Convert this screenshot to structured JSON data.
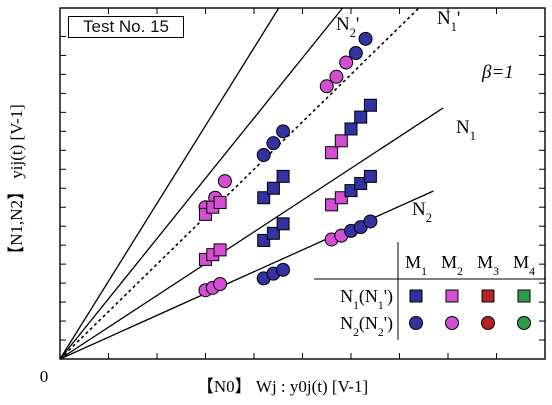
{
  "test_label": "Test No. 15",
  "chart_data": {
    "type": "scatter",
    "title": "",
    "xlabel": "【N0】 Wj : y0j(t) [V-1]",
    "ylabel": "【N1,N2】 yij(t) [V-1]",
    "origin_label": "0",
    "xlim": [
      0,
      10
    ],
    "ylim": [
      0,
      7.4
    ],
    "grid": false,
    "legend_position": "bottom-right",
    "reference_line": {
      "label": "β=1",
      "slope": 1,
      "style": "dotted"
    },
    "fit_lines": [
      {
        "name": "N2'",
        "slope": 1.64,
        "x_end": 6.5
      },
      {
        "name": "N1'",
        "slope": 1.27,
        "x_end": 7.8
      },
      {
        "name": "N1",
        "slope": 0.67,
        "x_end": 7.9
      },
      {
        "name": "N2",
        "slope": 0.46,
        "x_end": 7.7
      }
    ],
    "series": [
      {
        "name": "N2'",
        "marker": "circle",
        "points": [
          [
            3.0,
            3.2
          ],
          [
            3.2,
            3.4
          ],
          [
            3.4,
            3.75
          ],
          [
            4.2,
            4.3
          ],
          [
            4.4,
            4.55
          ],
          [
            4.6,
            4.8
          ],
          [
            5.5,
            5.75
          ],
          [
            5.7,
            5.95
          ],
          [
            5.9,
            6.25
          ],
          [
            6.1,
            6.45
          ],
          [
            6.3,
            6.75
          ]
        ]
      },
      {
        "name": "N1'",
        "marker": "square",
        "points": [
          [
            3.0,
            3.05
          ],
          [
            3.15,
            3.2
          ],
          [
            3.3,
            3.3
          ],
          [
            4.2,
            3.4
          ],
          [
            4.4,
            3.6
          ],
          [
            4.6,
            3.85
          ],
          [
            5.6,
            4.35
          ],
          [
            5.8,
            4.6
          ],
          [
            6.0,
            4.85
          ],
          [
            6.2,
            5.1
          ],
          [
            6.4,
            5.35
          ]
        ]
      },
      {
        "name": "N1",
        "marker": "square",
        "points": [
          [
            3.0,
            2.1
          ],
          [
            3.15,
            2.2
          ],
          [
            3.3,
            2.3
          ],
          [
            4.2,
            2.5
          ],
          [
            4.4,
            2.65
          ],
          [
            4.6,
            2.85
          ],
          [
            5.6,
            3.25
          ],
          [
            5.8,
            3.4
          ],
          [
            6.0,
            3.55
          ],
          [
            6.2,
            3.7
          ],
          [
            6.4,
            3.85
          ]
        ]
      },
      {
        "name": "N2",
        "marker": "circle",
        "points": [
          [
            3.0,
            1.45
          ],
          [
            3.15,
            1.5
          ],
          [
            3.3,
            1.58
          ],
          [
            4.2,
            1.7
          ],
          [
            4.4,
            1.8
          ],
          [
            4.6,
            1.88
          ],
          [
            5.6,
            2.52
          ],
          [
            5.8,
            2.6
          ],
          [
            6.0,
            2.7
          ],
          [
            6.2,
            2.78
          ],
          [
            6.4,
            2.9
          ]
        ]
      }
    ],
    "line_labels": [
      {
        "name": "N2'",
        "text": "N2'"
      },
      {
        "name": "N1'",
        "text": "N1'"
      },
      {
        "name": "N1",
        "text": "N1"
      },
      {
        "name": "N2",
        "text": "N2"
      }
    ],
    "legend": {
      "columns": [
        "M1",
        "M2",
        "M3",
        "M4"
      ],
      "rows": [
        {
          "label": "N1(N1')",
          "marker": "square"
        },
        {
          "name": "N2",
          "label": "N2(N2')",
          "marker": "circle"
        }
      ],
      "colors": [
        "#3232a0",
        "#d44ed4",
        "#b42424",
        "#2f9a4a"
      ]
    }
  }
}
